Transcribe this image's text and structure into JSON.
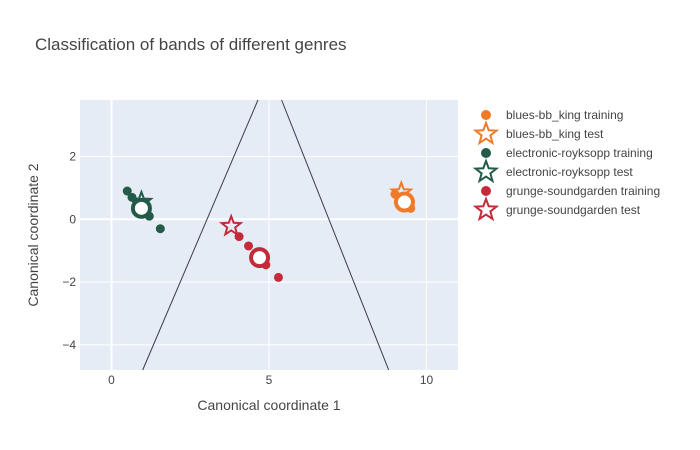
{
  "chart_data": {
    "type": "scatter",
    "title": "Classification of bands of different genres",
    "xlabel": "Canonical coordinate 1",
    "ylabel": "Canonical coordinate 2",
    "xlim": [
      -1,
      11
    ],
    "ylim": [
      -4.8,
      3.8
    ],
    "x_ticks": [
      0,
      5,
      10
    ],
    "y_ticks": [
      2,
      0,
      -2,
      -4
    ],
    "x_tick_labels": [
      "0",
      "5",
      "10"
    ],
    "y_tick_labels": [
      "2",
      "0",
      "−2",
      "−4"
    ],
    "grid": true,
    "legend_position": "right",
    "series": [
      {
        "name": "blues-bb_king training",
        "color": "#f07a28",
        "marker": "circle",
        "x": [
          9.0,
          9.2,
          9.3,
          9.5
        ],
        "y": [
          0.8,
          0.55,
          0.65,
          0.35
        ]
      },
      {
        "name": "blues-bb_king test",
        "color": "#f07a28",
        "marker": "star-open",
        "x": [
          9.2
        ],
        "y": [
          0.85
        ]
      },
      {
        "name": "electronic-royksopp training",
        "color": "#245b48",
        "marker": "circle",
        "x": [
          0.5,
          0.65,
          0.8,
          1.2,
          1.55
        ],
        "y": [
          0.9,
          0.7,
          0.55,
          0.1,
          -0.3
        ]
      },
      {
        "name": "electronic-royksopp test",
        "color": "#245b48",
        "marker": "star-open",
        "x": [
          0.95
        ],
        "y": [
          0.55
        ]
      },
      {
        "name": "grunge-soundgarden training",
        "color": "#c42b3a",
        "marker": "circle",
        "x": [
          4.05,
          4.35,
          4.9,
          5.3
        ],
        "y": [
          -0.55,
          -0.85,
          -1.45,
          -1.85
        ]
      },
      {
        "name": "grunge-soundgarden test",
        "color": "#c42b3a",
        "marker": "star-open",
        "x": [
          3.8
        ],
        "y": [
          -0.22
        ]
      }
    ],
    "centroids": [
      {
        "color": "#f07a28",
        "x": 9.3,
        "y": 0.55
      },
      {
        "color": "#245b48",
        "x": 0.95,
        "y": 0.35
      },
      {
        "color": "#c42b3a",
        "x": 4.7,
        "y": -1.22
      }
    ],
    "decision_lines": [
      {
        "x": [
          0.99,
          4.65
        ],
        "y": [
          -4.8,
          3.8
        ]
      },
      {
        "x": [
          5.4,
          8.8
        ],
        "y": [
          3.8,
          -4.8
        ]
      }
    ]
  }
}
